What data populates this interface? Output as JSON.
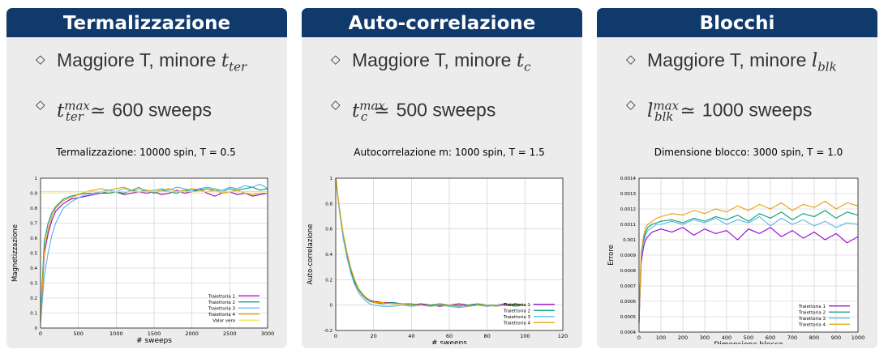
{
  "panels": [
    {
      "header": "Termalizzazione",
      "bullet1": {
        "text": "Maggiore T, minore ",
        "sym": "t",
        "sub": "ter",
        "sup": ""
      },
      "bullet2": {
        "sym": "t",
        "sub": "ter",
        "sup": "max",
        "rel": "≃",
        "value": "600 sweeps"
      }
    },
    {
      "header": "Auto-correlazione",
      "bullet1": {
        "text": "Maggiore T, minore ",
        "sym": "t",
        "sub": "c",
        "sup": ""
      },
      "bullet2": {
        "sym": "t",
        "sub": "c",
        "sup": "max",
        "rel": "≃",
        "value": "500 sweeps"
      }
    },
    {
      "header": "Blocchi",
      "bullet1": {
        "text": "Maggiore T, minore ",
        "sym": "l",
        "sub": "blk",
        "sup": ""
      },
      "bullet2": {
        "sym": "l",
        "sub": "blk",
        "sup": "max",
        "rel": "≃",
        "value": "1000 sweeps"
      }
    }
  ],
  "chart_data": [
    {
      "type": "line",
      "title": "Termalizzazione: 10000 spin, T = 0.5",
      "xlabel": "# sweeps",
      "ylabel": "Magnetizzazione",
      "xlim": [
        0,
        3000
      ],
      "ylim": [
        0,
        1
      ],
      "xticks": [
        0,
        500,
        1000,
        1500,
        2000,
        2500,
        3000
      ],
      "xtick_labels": [
        "0",
        "500",
        "1000",
        "1500",
        "2000",
        "2500",
        "3000"
      ],
      "yticks": [
        0,
        0.1,
        0.2,
        0.3,
        0.4,
        0.5,
        0.6,
        0.7,
        0.8,
        0.9,
        1
      ],
      "ytick_labels": [
        "0",
        "0.1",
        "0.2",
        "0.3",
        "0.4",
        "0.5",
        "0.6",
        "0.7",
        "0.8",
        "0.9",
        "1"
      ],
      "grid": true,
      "legend": "bottom-right",
      "series": [
        {
          "name": "Traiettoria 1",
          "color": "#9400d3",
          "x": [
            0,
            50,
            100,
            150,
            200,
            300,
            400,
            500,
            600,
            700,
            800,
            900,
            1000,
            1100,
            1200,
            1300,
            1400,
            1500,
            1600,
            1700,
            1800,
            1900,
            2000,
            2100,
            2200,
            2300,
            2400,
            2500,
            2600,
            2700,
            2800,
            2900,
            3000
          ],
          "y": [
            0.05,
            0.5,
            0.63,
            0.72,
            0.78,
            0.83,
            0.86,
            0.87,
            0.88,
            0.89,
            0.9,
            0.9,
            0.91,
            0.89,
            0.9,
            0.91,
            0.9,
            0.91,
            0.89,
            0.9,
            0.92,
            0.9,
            0.91,
            0.93,
            0.9,
            0.88,
            0.9,
            0.91,
            0.89,
            0.9,
            0.88,
            0.89,
            0.9
          ]
        },
        {
          "name": "Traiettoria 2",
          "color": "#009e73",
          "x": [
            0,
            50,
            100,
            150,
            200,
            300,
            400,
            500,
            600,
            700,
            800,
            900,
            1000,
            1100,
            1200,
            1300,
            1400,
            1500,
            1600,
            1700,
            1800,
            1900,
            2000,
            2100,
            2200,
            2300,
            2400,
            2500,
            2600,
            2700,
            2800,
            2900,
            3000
          ],
          "y": [
            0.08,
            0.58,
            0.7,
            0.77,
            0.81,
            0.86,
            0.88,
            0.89,
            0.9,
            0.9,
            0.91,
            0.9,
            0.91,
            0.9,
            0.92,
            0.91,
            0.92,
            0.9,
            0.92,
            0.91,
            0.9,
            0.92,
            0.91,
            0.92,
            0.93,
            0.92,
            0.91,
            0.93,
            0.92,
            0.93,
            0.94,
            0.92,
            0.93
          ]
        },
        {
          "name": "Traiettoria 3",
          "color": "#56b4e9",
          "x": [
            0,
            50,
            100,
            150,
            200,
            300,
            400,
            500,
            600,
            700,
            800,
            900,
            1000,
            1100,
            1200,
            1300,
            1400,
            1500,
            1600,
            1700,
            1800,
            1900,
            2000,
            2100,
            2200,
            2300,
            2400,
            2500,
            2600,
            2700,
            2800,
            2900,
            3000
          ],
          "y": [
            0.03,
            0.35,
            0.5,
            0.62,
            0.7,
            0.8,
            0.84,
            0.87,
            0.89,
            0.9,
            0.91,
            0.92,
            0.91,
            0.93,
            0.92,
            0.94,
            0.91,
            0.92,
            0.93,
            0.92,
            0.94,
            0.93,
            0.92,
            0.93,
            0.94,
            0.93,
            0.92,
            0.94,
            0.93,
            0.95,
            0.94,
            0.96,
            0.93
          ]
        },
        {
          "name": "Traiettoria 4",
          "color": "#e69f00",
          "x": [
            0,
            50,
            100,
            150,
            200,
            300,
            400,
            500,
            600,
            700,
            800,
            900,
            1000,
            1100,
            1200,
            1300,
            1400,
            1500,
            1600,
            1700,
            1800,
            1900,
            2000,
            2100,
            2200,
            2300,
            2400,
            2500,
            2600,
            2700,
            2800,
            2900,
            3000
          ],
          "y": [
            0.06,
            0.52,
            0.66,
            0.75,
            0.8,
            0.85,
            0.87,
            0.89,
            0.91,
            0.92,
            0.93,
            0.92,
            0.93,
            0.94,
            0.92,
            0.93,
            0.92,
            0.91,
            0.92,
            0.93,
            0.91,
            0.92,
            0.93,
            0.92,
            0.91,
            0.92,
            0.9,
            0.91,
            0.92,
            0.9,
            0.89,
            0.9,
            0.9
          ]
        },
        {
          "name": "Valor vero",
          "color": "#f0e442",
          "x": [
            0,
            3000
          ],
          "y": [
            0.91,
            0.91
          ]
        }
      ]
    },
    {
      "type": "line",
      "title": "Autocorrelazione m: 1000 spin, T = 1.5",
      "xlabel": "# sweeps",
      "ylabel": "Auto-correlazione",
      "xlim": [
        0,
        120
      ],
      "ylim": [
        -0.2,
        1
      ],
      "xticks": [
        0,
        20,
        40,
        60,
        80,
        100,
        120
      ],
      "xtick_labels": [
        "0",
        "20",
        "40",
        "60",
        "80",
        "100",
        "120"
      ],
      "yticks": [
        -0.2,
        0,
        0.2,
        0.4,
        0.6,
        0.8,
        1
      ],
      "ytick_labels": [
        "-0.2",
        "0",
        "0.2",
        "0.4",
        "0.6",
        "0.8",
        "1"
      ],
      "grid": true,
      "legend": "bottom-right",
      "series": [
        {
          "name": "Traiettoria 1",
          "color": "#9400d3",
          "x": [
            0,
            2,
            4,
            6,
            8,
            10,
            12,
            14,
            16,
            18,
            20,
            25,
            30,
            35,
            40,
            45,
            50,
            55,
            60,
            65,
            70,
            75,
            80,
            85,
            90,
            95,
            100
          ],
          "y": [
            1,
            0.75,
            0.55,
            0.4,
            0.28,
            0.19,
            0.13,
            0.09,
            0.06,
            0.04,
            0.03,
            0.02,
            0.02,
            0.01,
            0.0,
            0.01,
            0.0,
            -0.01,
            0.0,
            0.01,
            0.0,
            0.0,
            -0.01,
            0.0,
            0.01,
            0.0,
            0.0
          ]
        },
        {
          "name": "Traiettoria 2",
          "color": "#009e73",
          "x": [
            0,
            2,
            4,
            6,
            8,
            10,
            12,
            14,
            16,
            18,
            20,
            25,
            30,
            35,
            40,
            45,
            50,
            55,
            60,
            65,
            70,
            75,
            80,
            85,
            90,
            95,
            100
          ],
          "y": [
            1,
            0.74,
            0.54,
            0.39,
            0.27,
            0.18,
            0.12,
            0.08,
            0.05,
            0.03,
            0.02,
            0.01,
            0.02,
            0.01,
            0.01,
            0.0,
            0.0,
            0.01,
            0.0,
            -0.01,
            0.0,
            0.01,
            0.0,
            0.0,
            0.0,
            0.01,
            0.0
          ]
        },
        {
          "name": "Traiettoria 3",
          "color": "#56b4e9",
          "x": [
            0,
            2,
            4,
            6,
            8,
            10,
            12,
            14,
            16,
            18,
            20,
            25,
            30,
            35,
            40,
            45,
            50,
            55,
            60,
            65,
            70,
            75,
            80,
            85,
            90,
            95,
            100
          ],
          "y": [
            1,
            0.73,
            0.52,
            0.37,
            0.25,
            0.16,
            0.1,
            0.06,
            0.03,
            0.01,
            0.0,
            -0.01,
            -0.01,
            0.0,
            -0.01,
            0.0,
            -0.01,
            0.0,
            -0.01,
            -0.02,
            -0.01,
            0.0,
            -0.01,
            0.0,
            0.0,
            -0.01,
            0.0
          ]
        },
        {
          "name": "Traiettoria 4",
          "color": "#e69f00",
          "x": [
            0,
            2,
            4,
            6,
            8,
            10,
            12,
            14,
            16,
            18,
            20,
            25,
            30,
            35,
            40,
            45,
            50,
            55,
            60,
            65,
            70,
            75,
            80,
            85,
            90,
            95,
            100
          ],
          "y": [
            1,
            0.76,
            0.56,
            0.41,
            0.29,
            0.2,
            0.13,
            0.09,
            0.06,
            0.04,
            0.02,
            0.02,
            0.01,
            0.01,
            0.0,
            0.0,
            -0.01,
            0.0,
            0.0,
            0.0,
            -0.01,
            0.0,
            0.0,
            -0.01,
            0.0,
            0.0,
            0.0
          ]
        }
      ]
    },
    {
      "type": "line",
      "title": "Dimensione blocco: 3000 spin, T = 1.0",
      "xlabel": "Dimensione blocco",
      "ylabel": "Errore",
      "xlim": [
        0,
        1000
      ],
      "ylim": [
        0.0004,
        0.0014
      ],
      "xticks": [
        0,
        100,
        200,
        300,
        400,
        500,
        600,
        700,
        800,
        900,
        1000
      ],
      "xtick_labels": [
        "0",
        "100",
        "200",
        "300",
        "400",
        "500",
        "600",
        "700",
        "800",
        "900",
        "1000"
      ],
      "yticks": [
        0.0004,
        0.0005,
        0.0006,
        0.0007,
        0.0008,
        0.0009,
        0.001,
        0.0011,
        0.0012,
        0.0013,
        0.0014
      ],
      "ytick_labels": [
        "0.0004",
        "0.0005",
        "0.0006",
        "0.0007",
        "0.0008",
        "0.0009",
        "0.001",
        "0.0011",
        "0.0012",
        "0.0013",
        "0.0014"
      ],
      "grid": true,
      "legend": "bottom-right",
      "series": [
        {
          "name": "Traiettoria 1",
          "color": "#9400d3",
          "x": [
            0,
            10,
            20,
            30,
            40,
            60,
            80,
            100,
            150,
            200,
            250,
            300,
            350,
            400,
            450,
            500,
            550,
            600,
            650,
            700,
            750,
            800,
            850,
            900,
            950,
            1000
          ],
          "y": [
            0.00046,
            0.00085,
            0.00095,
            0.001,
            0.00102,
            0.00105,
            0.00106,
            0.00107,
            0.00105,
            0.00108,
            0.00103,
            0.00107,
            0.00104,
            0.00106,
            0.001,
            0.00107,
            0.00104,
            0.00108,
            0.00102,
            0.00106,
            0.00101,
            0.00105,
            0.001,
            0.00104,
            0.00098,
            0.00102
          ]
        },
        {
          "name": "Traiettoria 2",
          "color": "#009e73",
          "x": [
            0,
            10,
            20,
            30,
            40,
            60,
            80,
            100,
            150,
            200,
            250,
            300,
            350,
            400,
            450,
            500,
            550,
            600,
            650,
            700,
            750,
            800,
            850,
            900,
            950,
            1000
          ],
          "y": [
            0.00048,
            0.0009,
            0.001,
            0.00105,
            0.00108,
            0.0011,
            0.00111,
            0.00112,
            0.00113,
            0.00111,
            0.00114,
            0.00112,
            0.00115,
            0.00113,
            0.00116,
            0.00112,
            0.00117,
            0.00114,
            0.00118,
            0.00113,
            0.00117,
            0.00115,
            0.00119,
            0.00114,
            0.00118,
            0.00116
          ]
        },
        {
          "name": "Traiettoria 3",
          "color": "#56b4e9",
          "x": [
            0,
            10,
            20,
            30,
            40,
            60,
            80,
            100,
            150,
            200,
            250,
            300,
            350,
            400,
            450,
            500,
            550,
            600,
            650,
            700,
            750,
            800,
            850,
            900,
            950,
            1000
          ],
          "y": [
            0.00047,
            0.00088,
            0.00098,
            0.00103,
            0.00106,
            0.00108,
            0.0011,
            0.0011,
            0.00112,
            0.0011,
            0.00113,
            0.00111,
            0.00114,
            0.0011,
            0.00113,
            0.00111,
            0.00115,
            0.00109,
            0.00114,
            0.0011,
            0.00113,
            0.00109,
            0.00112,
            0.00108,
            0.00111,
            0.0011
          ]
        },
        {
          "name": "Traiettoria 4",
          "color": "#e69f00",
          "x": [
            0,
            10,
            20,
            30,
            40,
            60,
            80,
            100,
            150,
            200,
            250,
            300,
            350,
            400,
            450,
            500,
            550,
            600,
            650,
            700,
            750,
            800,
            850,
            900,
            950,
            1000
          ],
          "y": [
            0.00049,
            0.00092,
            0.00102,
            0.00108,
            0.0011,
            0.00112,
            0.00114,
            0.00115,
            0.00117,
            0.00116,
            0.00119,
            0.00117,
            0.0012,
            0.00118,
            0.00122,
            0.00119,
            0.00123,
            0.0012,
            0.00124,
            0.00119,
            0.00123,
            0.00121,
            0.00125,
            0.0012,
            0.00124,
            0.00122
          ]
        }
      ]
    }
  ]
}
